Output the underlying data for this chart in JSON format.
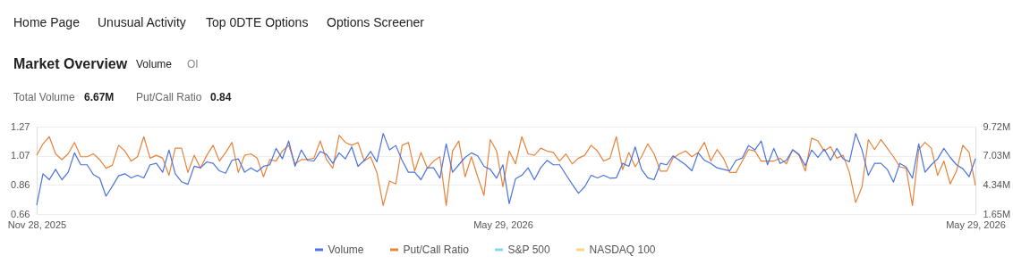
{
  "chart_data": {
    "type": "line",
    "title": "Market Overview",
    "annotations": [
      "Home Page",
      "Unusual Activity",
      "Top 0DTE Options",
      "Options Screener",
      "Volume",
      "OI",
      "Total Volume",
      "6.67M",
      "Put/Call Ratio",
      "0.84"
    ],
    "categories": [
      "Nov 28, 2025",
      null,
      null,
      null,
      null,
      null,
      null,
      null,
      null,
      null,
      null,
      null,
      null,
      null,
      null,
      null,
      null,
      null,
      null,
      null,
      null,
      null,
      null,
      null,
      null,
      null,
      null,
      null,
      null,
      null,
      null,
      null,
      null,
      null,
      null,
      null,
      null,
      null,
      null,
      null,
      null,
      null,
      null,
      null,
      null,
      null,
      null,
      null,
      null,
      null,
      null,
      null,
      null,
      null,
      null,
      null,
      null,
      null,
      null,
      null,
      null,
      null,
      null,
      null,
      null,
      null,
      null,
      null,
      null,
      null,
      null,
      null,
      null,
      null,
      "May 29, 2026",
      null,
      null,
      null,
      null,
      null,
      null,
      null,
      null,
      null,
      null,
      null,
      null,
      null,
      null,
      null,
      null,
      null,
      null,
      null,
      null,
      null,
      null,
      null,
      null,
      null,
      null,
      null,
      null,
      null,
      null,
      null,
      null,
      null,
      null,
      null,
      null,
      null,
      null,
      null,
      null,
      null,
      null,
      null,
      null,
      null,
      null,
      null,
      null,
      null,
      null,
      null,
      null,
      null,
      null,
      null,
      null,
      null,
      null,
      null,
      null,
      null,
      null,
      null,
      null,
      null,
      null,
      null,
      null,
      null,
      null,
      null,
      null,
      null,
      null,
      "May 29, 2026"
    ],
    "series": [
      {
        "name": "Volume",
        "color": "#4a72e0",
        "axis": "y2",
        "values": [
          2.48,
          5.37,
          4.82,
          5.78,
          4.82,
          5.51,
          7.3,
          6.2,
          6.2,
          5.29,
          4.96,
          3.3,
          4.21,
          5.18,
          5.37,
          4.99,
          5.23,
          4.99,
          6.2,
          6.33,
          5.51,
          7.57,
          5.37,
          4.63,
          4.4,
          6.06,
          5.92,
          6.47,
          6.33,
          5.64,
          5.42,
          6.61,
          6.75,
          5.51,
          5.92,
          5.56,
          6.06,
          6.2,
          7.71,
          6.75,
          8.4,
          6.06,
          7.57,
          6.61,
          6.55,
          7.43,
          7.16,
          6.33,
          7.3,
          6.75,
          7.85,
          6.06,
          6.61,
          7.43,
          6.47,
          9.09,
          7.57,
          7.98,
          6.61,
          5.51,
          5.51,
          4.82,
          5.92,
          5.92,
          4.96,
          8.12,
          5.51,
          6.2,
          6.88,
          7.3,
          7.02,
          6.06,
          5.78,
          4.96,
          6.2,
          2.61,
          4.9,
          5.23,
          5.92,
          4.82,
          5.92,
          6.61,
          6.2,
          6.2,
          5.29,
          4.4,
          3.58,
          4.18,
          5.23,
          4.99,
          5.23,
          4.96,
          4.99,
          6.33,
          6.06,
          7.85,
          5.78,
          4.99,
          4.82,
          6.33,
          6.2,
          7.02,
          6.61,
          6.2,
          5.64,
          7.3,
          6.61,
          6.33,
          5.92,
          5.78,
          5.64,
          6.61,
          6.83,
          7.98,
          7.57,
          8.4,
          6.2,
          7.71,
          6.33,
          6.61,
          7.57,
          7.16,
          6.11,
          7.57,
          6.88,
          7.65,
          6.61,
          7.71,
          6.75,
          6.47,
          9.09,
          7.57,
          5.23,
          6.33,
          6.33,
          5.78,
          4.6,
          6.33,
          6.0,
          4.96,
          8.12,
          5.51,
          6.2,
          6.75,
          7.71,
          6.88,
          6.2,
          5.84,
          5.09,
          6.75
        ]
      },
      {
        "name": "Put/Call Ratio",
        "color": "#e8833a",
        "values": [
          1.07,
          1.15,
          1.2,
          1.08,
          1.04,
          1.08,
          1.16,
          1.06,
          1.06,
          1.08,
          1.04,
          0.98,
          1.0,
          1.14,
          1.1,
          1.03,
          1.06,
          1.2,
          1.05,
          1.07,
          1.05,
          0.93,
          1.12,
          1.12,
          0.95,
          1.07,
          0.98,
          1.07,
          1.14,
          1.03,
          1.09,
          1.16,
          0.95,
          1.07,
          1.08,
          1.05,
          0.92,
          1.04,
          1.03,
          1.1,
          1.14,
          1.01,
          1.04,
          1.04,
          1.05,
          1.17,
          1.04,
          0.98,
          1.21,
          1.16,
          1.14,
          1.16,
          1.03,
          1.06,
          0.95,
          0.72,
          0.89,
          0.87,
          1.14,
          1.16,
          0.96,
          1.09,
          0.98,
          1.03,
          1.06,
          0.72,
          1.1,
          1.17,
          0.92,
          1.06,
          0.92,
          0.79,
          1.18,
          1.1,
          0.85,
          1.1,
          1.01,
          1.2,
          1.08,
          1.07,
          1.12,
          1.1,
          1.09,
          1.03,
          1.08,
          1.01,
          1.05,
          1.07,
          1.14,
          1.1,
          1.03,
          1.05,
          1.2,
          0.97,
          1.09,
          0.99,
          1.06,
          1.15,
          1.08,
          0.96,
          0.96,
          1.05,
          1.08,
          1.1,
          1.06,
          1.09,
          1.16,
          1.03,
          1.11,
          1.05,
          0.95,
          0.95,
          1.03,
          1.11,
          1.1,
          1.03,
          1.03,
          1.03,
          1.05,
          1.01,
          1.11,
          1.07,
          0.96,
          1.19,
          1.17,
          1.1,
          1.13,
          1.05,
          1.07,
          0.95,
          0.74,
          0.85,
          1.18,
          1.11,
          1.18,
          1.12,
          1.06,
          0.99,
          0.98,
          0.72,
          1.11,
          1.16,
          1.12,
          0.93,
          1.03,
          0.87,
          0.96,
          1.14,
          1.09,
          0.86
        ]
      },
      {
        "name": "S&P 500",
        "color": "#80d8ec",
        "values": [
          null,
          null,
          null,
          null,
          null,
          null,
          null,
          null,
          null,
          null,
          null,
          null,
          null,
          null,
          null,
          null,
          null,
          null,
          null,
          null,
          null,
          null,
          null,
          null,
          null,
          null,
          null,
          null,
          null,
          null,
          null,
          null,
          null,
          null,
          null,
          null,
          null,
          null,
          null,
          null,
          null,
          null,
          null,
          null,
          null,
          null,
          null,
          null,
          null,
          null,
          null,
          null,
          null,
          null,
          null,
          null,
          null,
          null,
          null,
          null,
          null,
          null,
          null,
          null,
          null,
          null,
          null,
          null,
          null,
          null,
          null,
          null,
          null,
          null,
          null,
          null,
          null,
          null,
          null,
          null,
          null,
          null,
          null,
          null,
          null,
          null,
          null,
          null,
          null,
          null,
          null,
          null,
          null,
          null,
          null,
          null,
          null,
          null,
          null,
          null,
          null,
          null,
          null,
          null,
          null,
          null,
          null,
          null,
          null,
          null,
          null,
          null,
          null,
          null,
          null,
          null,
          null,
          null,
          null,
          null,
          null,
          null,
          null,
          null,
          null,
          null,
          null,
          null,
          null,
          null,
          null,
          null,
          null,
          null,
          null,
          null,
          null,
          null,
          null,
          null,
          null,
          null,
          null,
          null,
          null,
          null,
          null,
          null,
          null,
          null
        ]
      },
      {
        "name": "NASDAQ 100",
        "color": "#f7d67f",
        "values": [
          null,
          null,
          null,
          null,
          null,
          null,
          null,
          null,
          null,
          null,
          null,
          null,
          null,
          null,
          null,
          null,
          null,
          null,
          null,
          null,
          null,
          null,
          null,
          null,
          null,
          null,
          null,
          null,
          null,
          null,
          null,
          null,
          null,
          null,
          null,
          null,
          null,
          null,
          null,
          null,
          null,
          null,
          null,
          null,
          null,
          null,
          null,
          null,
          null,
          null,
          null,
          null,
          null,
          null,
          null,
          null,
          null,
          null,
          null,
          null,
          null,
          null,
          null,
          null,
          null,
          null,
          null,
          null,
          null,
          null,
          null,
          null,
          null,
          null,
          null,
          null,
          null,
          null,
          null,
          null,
          null,
          null,
          null,
          null,
          null,
          null,
          null,
          null,
          null,
          null,
          null,
          null,
          null,
          null,
          null,
          null,
          null,
          null,
          null,
          null,
          null,
          null,
          null,
          null,
          null,
          null,
          null,
          null,
          null,
          null,
          null,
          null,
          null,
          null,
          null,
          null,
          null,
          null,
          null,
          null,
          null,
          null,
          null,
          null,
          null,
          null,
          null,
          null,
          null,
          null,
          null,
          null,
          null,
          null,
          null,
          null,
          null,
          null,
          null,
          null,
          null,
          null,
          null,
          null,
          null,
          null,
          null,
          null,
          null,
          null
        ]
      }
    ],
    "ylim": [
      0.66,
      1.27
    ],
    "yticks": [
      0.66,
      {
        "value": 0.8633,
        "label": "0.86"
      },
      {
        "value": 1.0667,
        "label": "1.07"
      },
      1.27
    ],
    "y2lim": [
      1.65,
      9.72
    ],
    "y2ticks": [
      {
        "value": 1.65,
        "label": "1.65M"
      },
      {
        "value": 4.34,
        "label": "4.34M"
      },
      {
        "value": 7.03,
        "label": "7.03M"
      },
      {
        "value": 9.72,
        "label": "9.72M"
      }
    ],
    "grid": "y",
    "legend": "bottom",
    "marker": "none",
    "line_style": "solid"
  }
}
